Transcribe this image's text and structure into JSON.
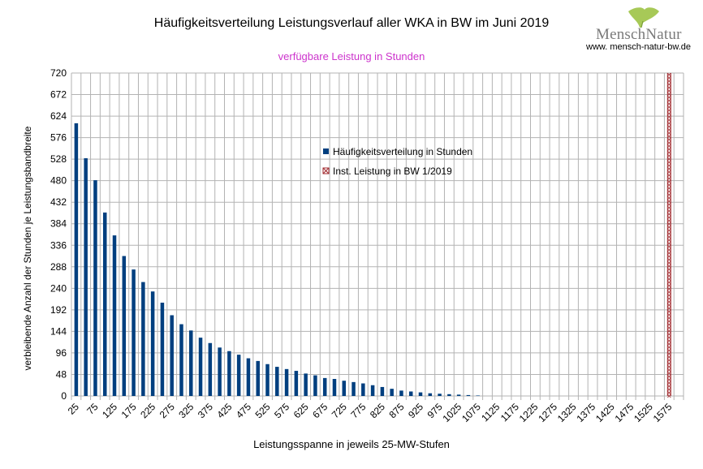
{
  "header": {
    "title": "Häufigkeitsverteilung Leistungsverlauf aller WKA in BW im Juni 2019",
    "subtitle": "verfügbare Leistung in Stunden"
  },
  "brand": {
    "logo_text": "MenschNatur",
    "url": "www. mensch-natur-bw.de",
    "logo_color": "#a7c957"
  },
  "chart_data": {
    "type": "bar",
    "title": "Häufigkeitsverteilung Leistungsverlauf aller WKA in BW im Juni 2019",
    "subtitle": "verfügbare Leistung in Stunden",
    "xlabel": "Leistungsspanne in jeweils 25-MW-Stufen",
    "ylabel": "verbleibende Anzahl der Stunden je Leistungsbandbreite",
    "ylim": [
      0,
      720
    ],
    "yticks": [
      0,
      48,
      96,
      144,
      192,
      240,
      288,
      336,
      384,
      432,
      480,
      528,
      576,
      624,
      672,
      720
    ],
    "x_tick_labels": [
      "25",
      "75",
      "125",
      "175",
      "225",
      "275",
      "325",
      "375",
      "425",
      "475",
      "525",
      "575",
      "625",
      "675",
      "725",
      "775",
      "825",
      "875",
      "925",
      "975",
      "1025",
      "1075",
      "1125",
      "1175",
      "1225",
      "1275",
      "1325",
      "1375",
      "1425",
      "1475",
      "1525",
      "1575"
    ],
    "categories": [
      25,
      50,
      75,
      100,
      125,
      150,
      175,
      200,
      225,
      250,
      275,
      300,
      325,
      350,
      375,
      400,
      425,
      450,
      475,
      500,
      525,
      550,
      575,
      600,
      625,
      650,
      675,
      700,
      725,
      750,
      775,
      800,
      825,
      850,
      875,
      900,
      925,
      950,
      975,
      1000,
      1025,
      1050,
      1075,
      1100,
      1125,
      1150,
      1175,
      1200,
      1225,
      1250,
      1275,
      1300,
      1325,
      1350,
      1375,
      1400,
      1425,
      1450,
      1475,
      1500,
      1525,
      1550,
      1575,
      1600
    ],
    "series": [
      {
        "name": "Häufigkeitsverteilung in Stunden",
        "color": "#003f7f",
        "values": [
          608,
          530,
          481,
          409,
          358,
          312,
          282,
          254,
          233,
          208,
          180,
          160,
          146,
          130,
          118,
          108,
          100,
          92,
          84,
          78,
          71,
          65,
          60,
          56,
          50,
          46,
          40,
          38,
          34,
          31,
          28,
          24,
          20,
          16,
          12,
          10,
          8,
          6,
          5,
          4,
          3,
          2,
          1,
          0,
          0,
          0,
          0,
          0,
          0,
          0,
          0,
          0,
          0,
          0,
          0,
          0,
          0,
          0,
          0,
          0,
          0,
          0,
          0,
          0
        ]
      },
      {
        "name": "Inst. Leistung in BW 1/2019",
        "color": "#a0282d",
        "x": 1575,
        "value": 720
      }
    ],
    "grid": true,
    "legend_position": "center"
  }
}
